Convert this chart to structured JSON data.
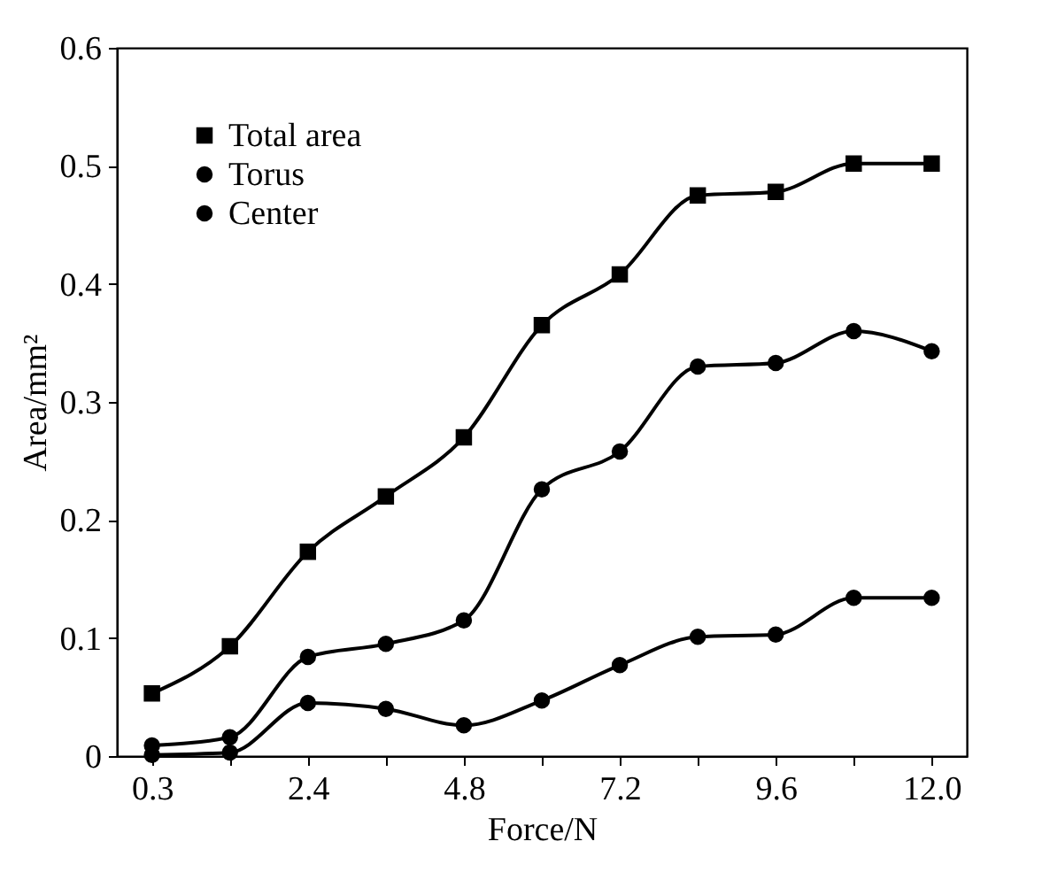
{
  "chart_data": {
    "type": "line",
    "xlabel": "Force/N",
    "ylabel": "Area/mm²",
    "categories": [
      "0.3",
      null,
      "2.4",
      null,
      "4.8",
      null,
      "7.2",
      null,
      "9.6",
      null,
      "12.0"
    ],
    "series": [
      {
        "name": "Total area",
        "color": "#000000",
        "marker": "square",
        "values": [
          0.053,
          0.093,
          0.173,
          0.22,
          0.27,
          0.365,
          0.408,
          0.475,
          0.478,
          0.502,
          0.502
        ]
      },
      {
        "name": "Torus",
        "color": "#000000",
        "marker": "circle",
        "values": [
          0.009,
          0.016,
          0.084,
          0.095,
          0.115,
          0.226,
          0.258,
          0.33,
          0.333,
          0.36,
          0.343
        ]
      },
      {
        "name": "Center",
        "color": "#000000",
        "marker": "circle",
        "values": [
          0.001,
          0.003,
          0.045,
          0.04,
          0.026,
          0.047,
          0.077,
          0.101,
          0.103,
          0.134,
          0.134
        ]
      }
    ],
    "ylim": [
      0,
      0.6
    ],
    "yticks": [
      0,
      0.1,
      0.2,
      0.3,
      0.4,
      0.5,
      0.6
    ],
    "legend": "top left",
    "grid": false
  }
}
